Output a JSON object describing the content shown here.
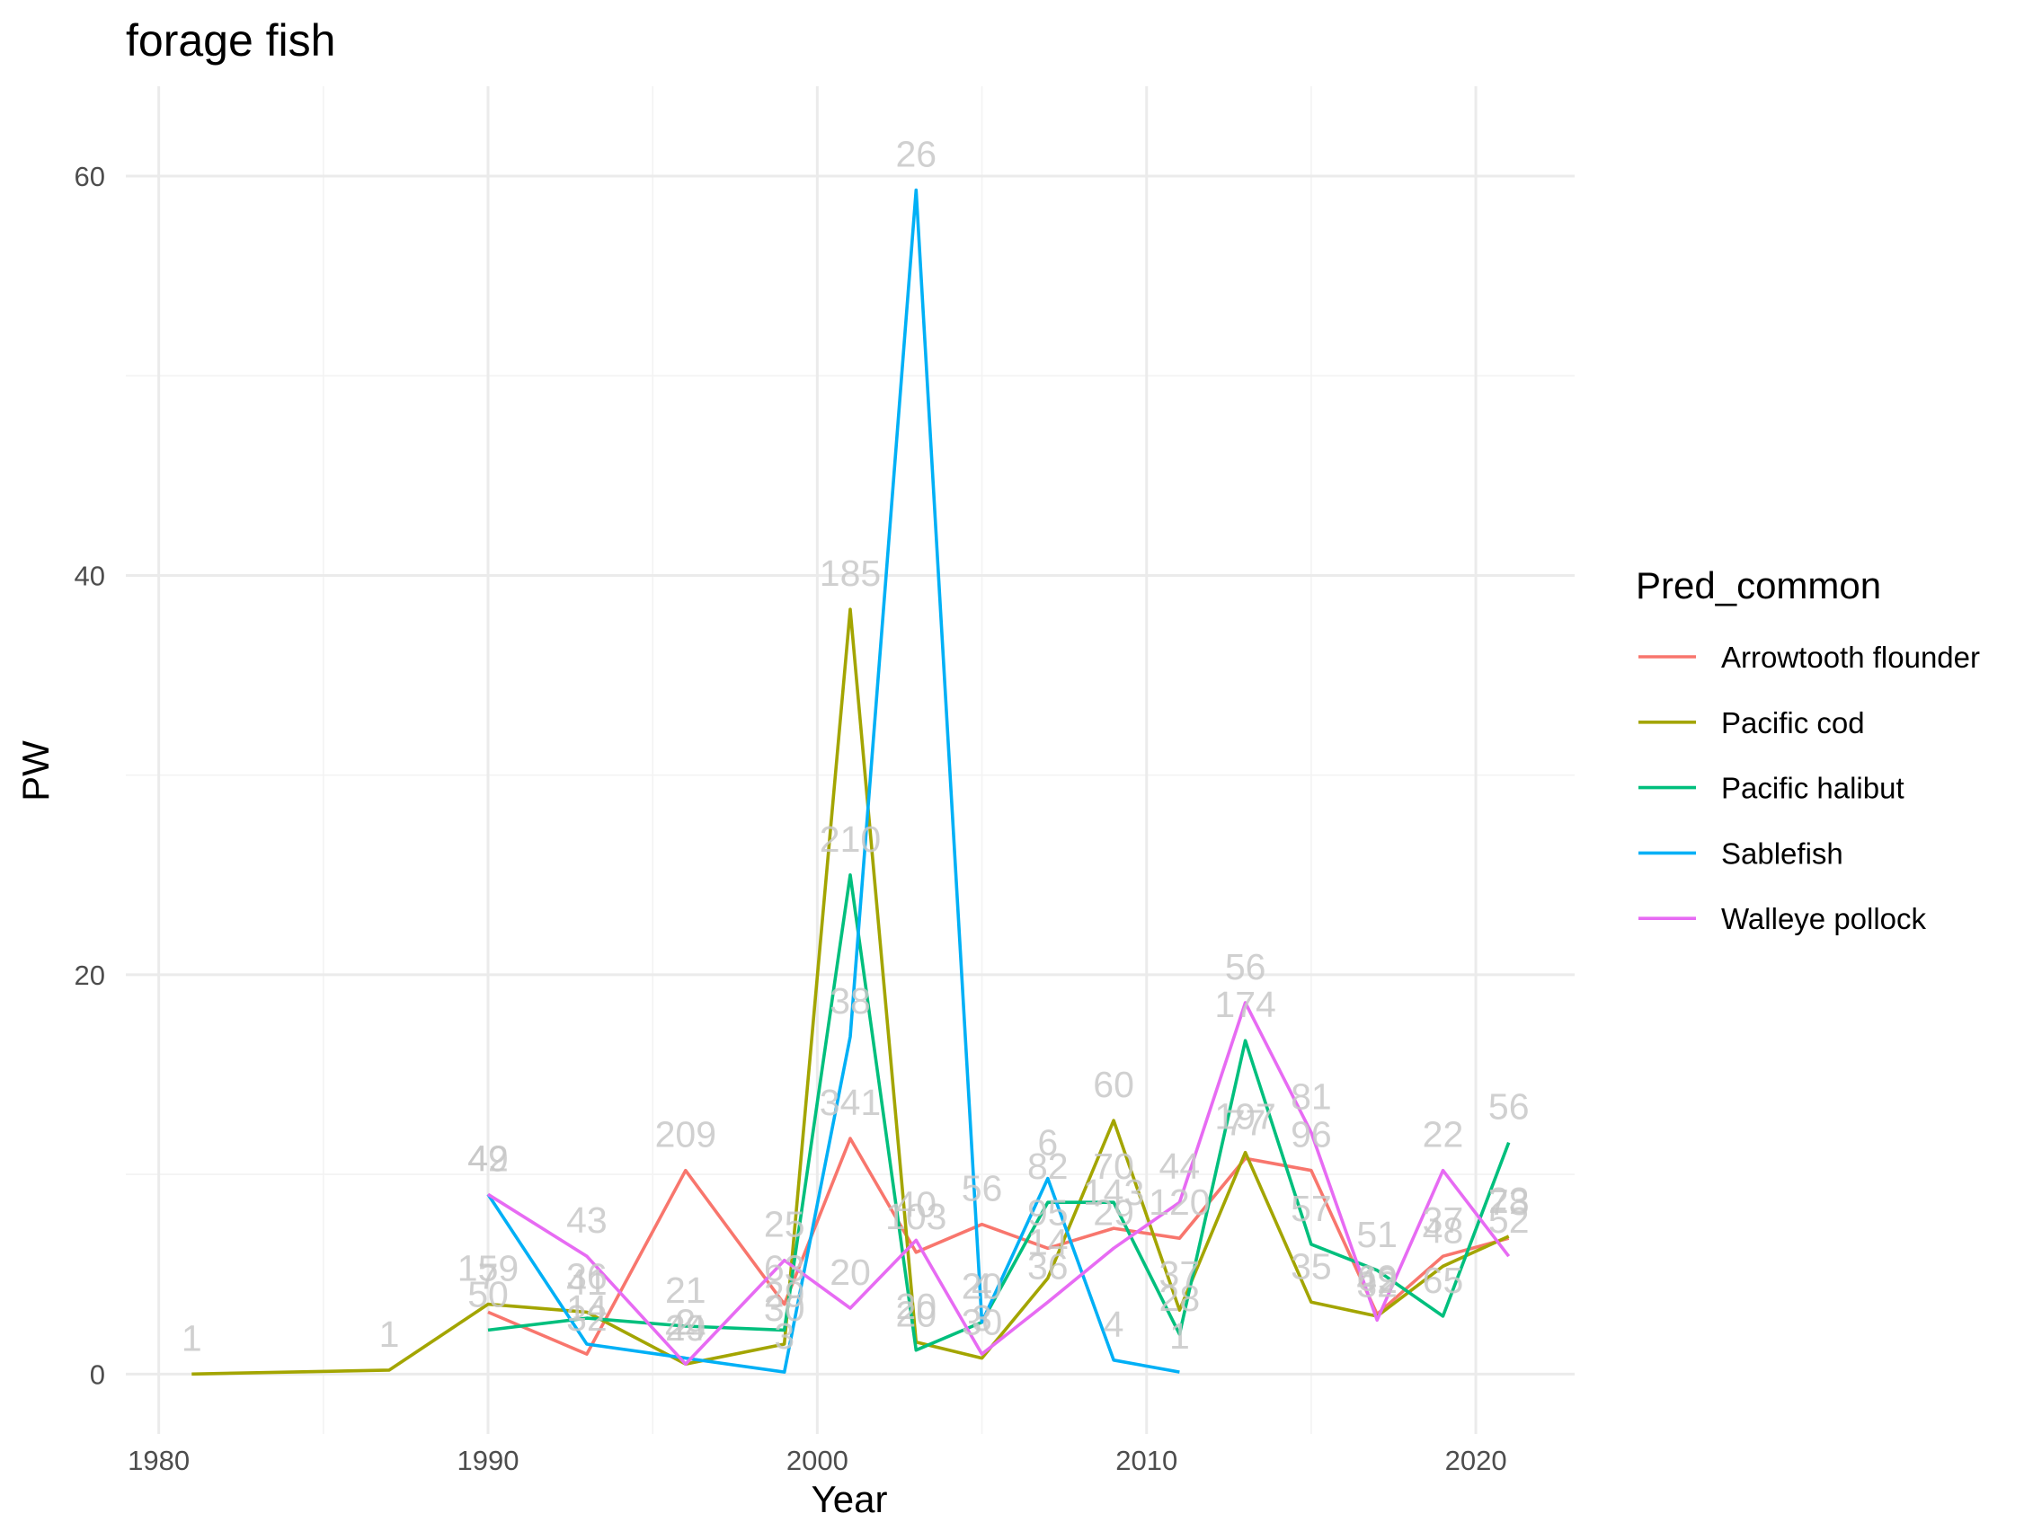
{
  "chart_data": {
    "type": "line",
    "title": "forage fish",
    "xlabel": "Year",
    "ylabel": "PW",
    "xlim": [
      1979,
      2023
    ],
    "ylim": [
      -3,
      64.5
    ],
    "x_ticks": [
      "1980",
      "1990",
      "2000",
      "2010",
      "2020"
    ],
    "y_ticks": [
      "0",
      "20",
      "40",
      "60"
    ],
    "grid": true,
    "legend": {
      "title": "Pred_common",
      "placement": "right"
    },
    "series": [
      {
        "name": "Arrowtooth flounder",
        "color": "#F8766D",
        "points": [
          {
            "x": 1990,
            "y": 3.1,
            "n": "7"
          },
          {
            "x": 1993,
            "y": 1.0,
            "n": "32"
          },
          {
            "x": 1996,
            "y": 10.2,
            "n": "209"
          },
          {
            "x": 1999,
            "y": 3.5,
            "n": "63"
          },
          {
            "x": 2001,
            "y": 11.8,
            "n": "341"
          },
          {
            "x": 2003,
            "y": 6.1,
            "n": "103"
          },
          {
            "x": 2005,
            "y": 7.5,
            "n": "56"
          },
          {
            "x": 2007,
            "y": 6.3,
            "n": "95"
          },
          {
            "x": 2009,
            "y": 7.3,
            "n": "143"
          },
          {
            "x": 2011,
            "y": 6.8,
            "n": "120"
          },
          {
            "x": 2013,
            "y": 10.8,
            "n": "77"
          },
          {
            "x": 2015,
            "y": 10.2,
            "n": "96"
          },
          {
            "x": 2017,
            "y": 3.0,
            "n": "69"
          },
          {
            "x": 2019,
            "y": 5.9,
            "n": "37"
          },
          {
            "x": 2021,
            "y": 6.8,
            "n": "78"
          }
        ]
      },
      {
        "name": "Pacific cod",
        "color": "#A3A500",
        "points": [
          {
            "x": 1981,
            "y": 0.0,
            "n": "1"
          },
          {
            "x": 1987,
            "y": 0.2,
            "n": "1"
          },
          {
            "x": 1990,
            "y": 3.5,
            "n": "159"
          },
          {
            "x": 1993,
            "y": 3.1,
            "n": "36"
          },
          {
            "x": 1996,
            "y": 0.5,
            "n": "24"
          },
          {
            "x": 1999,
            "y": 1.5,
            "n": "30"
          },
          {
            "x": 2001,
            "y": 38.3,
            "n": "185"
          },
          {
            "x": 2003,
            "y": 1.6,
            "n": "20"
          },
          {
            "x": 2005,
            "y": 0.8,
            "n": "30"
          },
          {
            "x": 2007,
            "y": 4.8,
            "n": "14"
          },
          {
            "x": 2009,
            "y": 12.7,
            "n": "60"
          },
          {
            "x": 2011,
            "y": 3.2,
            "n": "37"
          },
          {
            "x": 2013,
            "y": 11.1,
            "n": "197"
          },
          {
            "x": 2015,
            "y": 3.6,
            "n": "35"
          },
          {
            "x": 2017,
            "y": 2.9,
            "n": "42"
          },
          {
            "x": 2019,
            "y": 5.4,
            "n": "48"
          },
          {
            "x": 2021,
            "y": 6.9,
            "n": "23"
          }
        ]
      },
      {
        "name": "Pacific halibut",
        "color": "#00BF7D",
        "points": [
          {
            "x": 1990,
            "y": 2.2,
            "n": "50"
          },
          {
            "x": 1993,
            "y": 2.8,
            "n": "41"
          },
          {
            "x": 1996,
            "y": 2.4,
            "n": "21"
          },
          {
            "x": 1999,
            "y": 2.2,
            "n": "29"
          },
          {
            "x": 2001,
            "y": 25.0,
            "n": "210"
          },
          {
            "x": 2003,
            "y": 1.2,
            "n": "20"
          },
          {
            "x": 2005,
            "y": 2.6,
            "n": "20"
          },
          {
            "x": 2007,
            "y": 8.6,
            "n": "82"
          },
          {
            "x": 2009,
            "y": 8.6,
            "n": "70"
          },
          {
            "x": 2011,
            "y": 2.0,
            "n": "28"
          },
          {
            "x": 2013,
            "y": 16.7,
            "n": "174"
          },
          {
            "x": 2015,
            "y": 6.5,
            "n": "57"
          },
          {
            "x": 2017,
            "y": 5.2,
            "n": "51"
          },
          {
            "x": 2019,
            "y": 2.9,
            "n": "65"
          },
          {
            "x": 2021,
            "y": 11.6,
            "n": "56"
          }
        ]
      },
      {
        "name": "Sablefish",
        "color": "#00B0F6",
        "points": [
          {
            "x": 1990,
            "y": 9.0,
            "n": "42"
          },
          {
            "x": 1993,
            "y": 1.5,
            "n": "14"
          },
          {
            "x": 1996,
            "y": 0.8,
            "n": "2"
          },
          {
            "x": 1999,
            "y": 0.1,
            "n": "3"
          },
          {
            "x": 2001,
            "y": 16.9,
            "n": "38"
          },
          {
            "x": 2003,
            "y": 59.3,
            "n": "26"
          },
          {
            "x": 2005,
            "y": 2.6,
            "n": "4"
          },
          {
            "x": 2007,
            "y": 9.8,
            "n": "6"
          },
          {
            "x": 2009,
            "y": 0.7,
            "n": "4"
          },
          {
            "x": 2011,
            "y": 0.1,
            "n": "1"
          }
        ]
      },
      {
        "name": "Walleye pollock",
        "color": "#E76BF3",
        "points": [
          {
            "x": 1990,
            "y": 9.0,
            "n": "49"
          },
          {
            "x": 1993,
            "y": 5.9,
            "n": "43"
          },
          {
            "x": 1996,
            "y": 0.5,
            "n": "49"
          },
          {
            "x": 1999,
            "y": 5.7,
            "n": "25"
          },
          {
            "x": 2001,
            "y": 3.3,
            "n": "20"
          },
          {
            "x": 2003,
            "y": 6.7,
            "n": "40"
          },
          {
            "x": 2005,
            "y": 1.0,
            "n": "3"
          },
          {
            "x": 2007,
            "y": 3.6,
            "n": "36"
          },
          {
            "x": 2009,
            "y": 6.3,
            "n": "29"
          },
          {
            "x": 2011,
            "y": 8.6,
            "n": "44"
          },
          {
            "x": 2013,
            "y": 18.6,
            "n": "56"
          },
          {
            "x": 2015,
            "y": 12.1,
            "n": "81"
          },
          {
            "x": 2017,
            "y": 2.7,
            "n": "32"
          },
          {
            "x": 2019,
            "y": 10.2,
            "n": "22"
          },
          {
            "x": 2021,
            "y": 5.9,
            "n": "52"
          }
        ]
      }
    ]
  }
}
